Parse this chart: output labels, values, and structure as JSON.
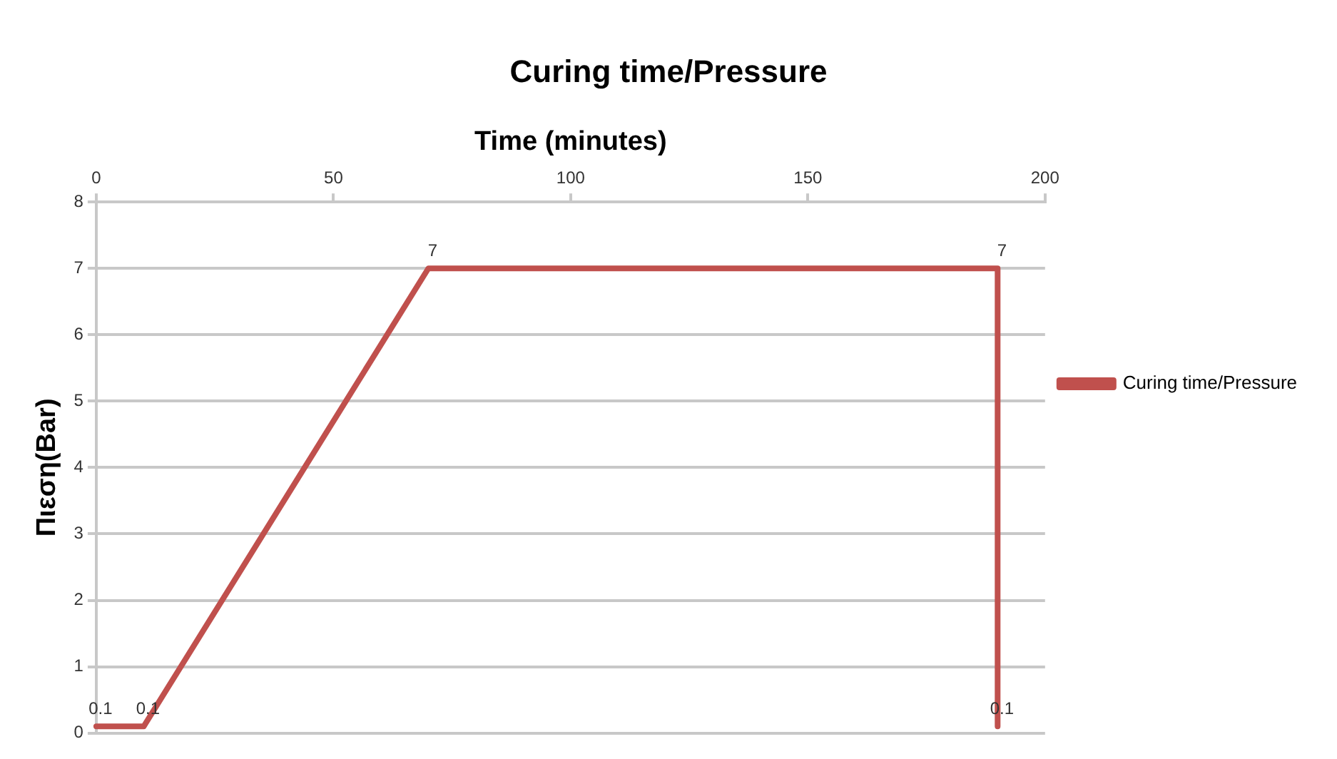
{
  "chart_data": {
    "type": "line",
    "title": "Curing time/Pressure",
    "xlabel": "Time (minutes)",
    "ylabel": "Πιεση(Bar)",
    "x": [
      0,
      10,
      70,
      190,
      190
    ],
    "series": [
      {
        "name": "Curing time/Pressure",
        "color": "#c0504d",
        "values": [
          0.1,
          0.1,
          7,
          7,
          0.1
        ]
      }
    ],
    "xlim": [
      0,
      200
    ],
    "xticks": [
      0,
      50,
      100,
      150,
      200
    ],
    "ylim": [
      0,
      8
    ],
    "yticks": [
      0,
      1,
      2,
      3,
      4,
      5,
      6,
      7,
      8
    ],
    "grid": "y",
    "legend": "right",
    "data_labels": true,
    "marker": "none",
    "line_style": "solid"
  }
}
